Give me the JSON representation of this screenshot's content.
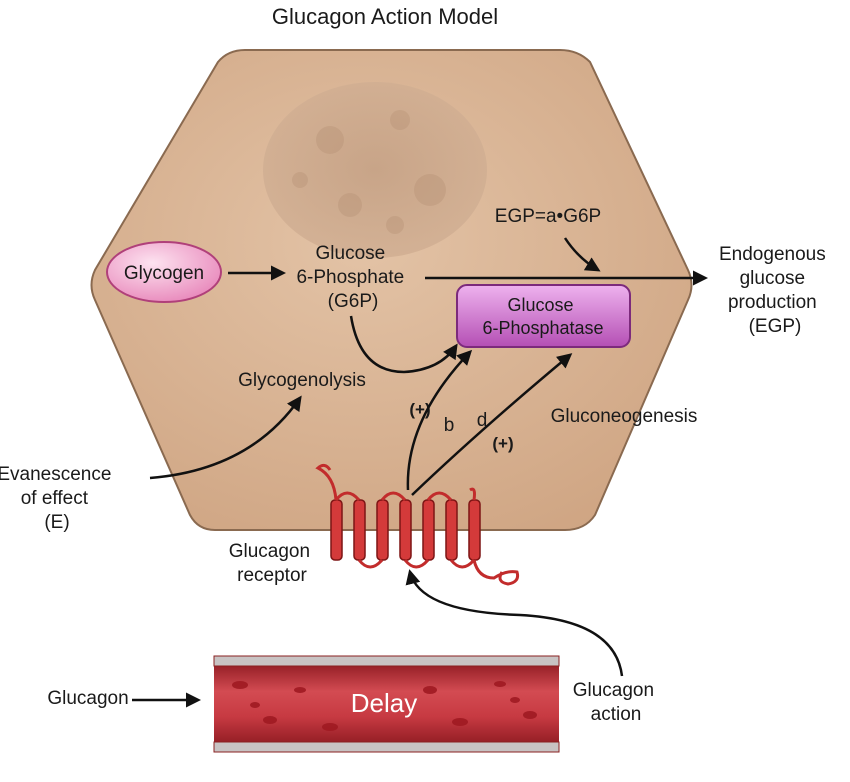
{
  "title": "Glucagon Action Model",
  "labels": {
    "glycogen": "Glycogen",
    "g6p": [
      "Glucose",
      "6-Phosphate",
      "(G6P)"
    ],
    "g6pase": [
      "Glucose",
      "6-Phosphatase"
    ],
    "egp_formula": "EGP=a•G6P",
    "egp": [
      "Endogenous",
      "glucose",
      "production",
      "(EGP)"
    ],
    "glycogenolysis": "Glycogenolysis",
    "gluconeogenesis": "Gluconeogenesis",
    "plus_b": "(+)",
    "b": "b",
    "d": "d",
    "plus_d": "(+)",
    "evanescence": [
      "Evanescence",
      "of effect",
      "(E)"
    ],
    "receptor": [
      "Glucagon",
      "receptor"
    ],
    "glucagon": "Glucagon",
    "delay": "Delay",
    "glucagon_action": [
      "Glucagon",
      "action"
    ]
  },
  "colors": {
    "cell_fill": "#d9b494",
    "cell_stroke": "#8a6a50",
    "nucleus": "#c9a58a",
    "glycogen_fill": "#f3a9cf",
    "g6pase_fill": "#cc66cc",
    "receptor": "#d43a3a",
    "vessel": "#b8262e",
    "arrow": "#111111"
  }
}
